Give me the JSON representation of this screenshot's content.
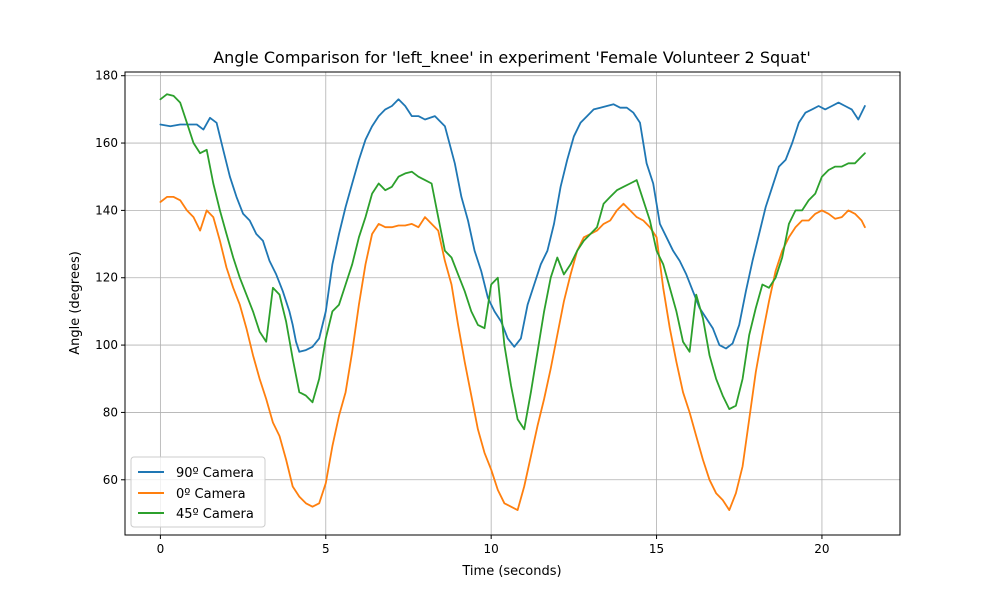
{
  "chart_data": {
    "type": "line",
    "title": "Angle Comparison for 'left_knee' in experiment 'Female Volunteer 2 Squat'",
    "xlabel": "Time (seconds)",
    "ylabel": "Angle (degrees)",
    "xlim": [
      -1.07,
      22.36
    ],
    "ylim": [
      43.6,
      181.1
    ],
    "xticks": [
      0,
      5,
      10,
      15,
      20
    ],
    "yticks": [
      60,
      80,
      100,
      120,
      140,
      160,
      180
    ],
    "grid": true,
    "legend_position": "lower-left",
    "series": [
      {
        "name": "90º Camera",
        "color": "#1f77b4",
        "x": [
          0.0,
          0.3,
          0.6,
          0.9,
          1.1,
          1.3,
          1.5,
          1.7,
          1.9,
          2.1,
          2.3,
          2.5,
          2.7,
          2.9,
          3.1,
          3.3,
          3.5,
          3.7,
          3.9,
          4.0,
          4.1,
          4.2,
          4.4,
          4.6,
          4.8,
          5.0,
          5.2,
          5.4,
          5.6,
          5.8,
          6.0,
          6.2,
          6.4,
          6.6,
          6.8,
          7.0,
          7.2,
          7.4,
          7.6,
          7.8,
          8.0,
          8.3,
          8.6,
          8.9,
          9.1,
          9.3,
          9.5,
          9.7,
          9.9,
          10.1,
          10.3,
          10.5,
          10.7,
          10.9,
          11.1,
          11.3,
          11.5,
          11.7,
          11.9,
          12.1,
          12.3,
          12.5,
          12.7,
          12.9,
          13.1,
          13.3,
          13.5,
          13.7,
          13.9,
          14.1,
          14.3,
          14.5,
          14.7,
          14.9,
          15.1,
          15.3,
          15.5,
          15.7,
          15.9,
          16.1,
          16.3,
          16.5,
          16.7,
          16.9,
          17.1,
          17.3,
          17.5,
          17.7,
          17.9,
          18.1,
          18.3,
          18.5,
          18.7,
          18.9,
          19.1,
          19.3,
          19.5,
          19.7,
          19.9,
          20.1,
          20.3,
          20.5,
          20.7,
          20.9,
          21.1,
          21.3
        ],
        "y": [
          165.5,
          165.0,
          165.5,
          165.5,
          165.5,
          164.0,
          167.5,
          166.0,
          158.0,
          150.0,
          144.0,
          139.0,
          137.0,
          133.0,
          131.0,
          125.0,
          121.0,
          116.0,
          110.0,
          106.0,
          101.0,
          98.0,
          98.5,
          99.5,
          102.0,
          110.0,
          124.0,
          133.0,
          141.0,
          148.0,
          155.0,
          161.0,
          165.0,
          168.0,
          170.0,
          171.0,
          173.0,
          171.0,
          168.0,
          168.0,
          167.0,
          168.0,
          165.0,
          154.0,
          144.0,
          137.0,
          128.0,
          122.0,
          114.0,
          110.0,
          107.0,
          102.0,
          99.5,
          102.0,
          112.0,
          118.0,
          124.0,
          128.0,
          136.0,
          147.0,
          155.0,
          162.0,
          166.0,
          168.0,
          170.0,
          170.5,
          171.0,
          171.5,
          170.5,
          170.5,
          169.0,
          166.0,
          154.0,
          148.0,
          136.0,
          132.0,
          128.0,
          125.0,
          121.0,
          116.0,
          111.0,
          108.0,
          105.0,
          100.0,
          99.0,
          100.5,
          106.0,
          116.0,
          125.0,
          133.0,
          141.0,
          147.0,
          153.0,
          155.0,
          160.0,
          166.0,
          169.0,
          170.0,
          171.0,
          170.0,
          171.0,
          172.0,
          171.0,
          170.0,
          167.0,
          171.0
        ]
      },
      {
        "name": "0º Camera",
        "color": "#ff7f0e",
        "x": [
          0.0,
          0.2,
          0.4,
          0.6,
          0.8,
          1.0,
          1.2,
          1.4,
          1.6,
          1.8,
          2.0,
          2.2,
          2.4,
          2.6,
          2.8,
          3.0,
          3.2,
          3.4,
          3.6,
          3.8,
          4.0,
          4.2,
          4.4,
          4.6,
          4.8,
          5.0,
          5.2,
          5.4,
          5.6,
          5.8,
          6.0,
          6.2,
          6.4,
          6.6,
          6.8,
          7.0,
          7.2,
          7.4,
          7.6,
          7.8,
          8.0,
          8.2,
          8.4,
          8.6,
          8.8,
          9.0,
          9.2,
          9.4,
          9.6,
          9.8,
          10.0,
          10.2,
          10.4,
          10.6,
          10.8,
          11.0,
          11.2,
          11.4,
          11.6,
          11.8,
          12.0,
          12.2,
          12.4,
          12.6,
          12.8,
          13.0,
          13.2,
          13.4,
          13.6,
          13.8,
          14.0,
          14.2,
          14.4,
          14.6,
          14.8,
          15.0,
          15.2,
          15.4,
          15.6,
          15.8,
          16.0,
          16.2,
          16.4,
          16.6,
          16.8,
          17.0,
          17.2,
          17.4,
          17.6,
          17.8,
          18.0,
          18.2,
          18.4,
          18.6,
          18.8,
          19.0,
          19.2,
          19.4,
          19.6,
          19.8,
          20.0,
          20.2,
          20.4,
          20.6,
          20.8,
          21.0,
          21.2,
          21.3
        ],
        "y": [
          142.5,
          144.0,
          144.0,
          143.0,
          140.0,
          138.0,
          134.0,
          140.0,
          138.0,
          131.0,
          123.0,
          117.0,
          112.0,
          105.0,
          97.0,
          90.0,
          84.0,
          77.0,
          73.0,
          66.0,
          58.0,
          55.0,
          53.0,
          52.0,
          53.0,
          59.0,
          70.0,
          79.0,
          86.0,
          98.0,
          112.0,
          124.0,
          133.0,
          136.0,
          135.0,
          135.0,
          135.5,
          135.5,
          136.0,
          135.0,
          138.0,
          136.0,
          134.0,
          125.0,
          118.0,
          106.0,
          95.0,
          85.0,
          75.0,
          68.0,
          63.0,
          57.0,
          53.0,
          52.0,
          51.0,
          58.0,
          67.0,
          76.0,
          84.0,
          93.0,
          103.0,
          113.0,
          121.0,
          128.0,
          132.0,
          133.0,
          134.0,
          136.0,
          137.0,
          140.0,
          142.0,
          140.0,
          138.0,
          137.0,
          135.0,
          132.0,
          117.0,
          105.0,
          95.0,
          86.0,
          80.0,
          73.0,
          66.0,
          60.0,
          56.0,
          54.0,
          51.0,
          56.0,
          64.0,
          78.0,
          92.0,
          103.0,
          113.0,
          122.0,
          128.0,
          132.0,
          135.0,
          137.0,
          137.0,
          139.0,
          140.0,
          139.0,
          137.5,
          138.0,
          140.0,
          139.0,
          137.0,
          135.0
        ]
      },
      {
        "name": "45º Camera",
        "color": "#2ca02c",
        "x": [
          0.0,
          0.2,
          0.4,
          0.6,
          0.8,
          1.0,
          1.2,
          1.4,
          1.6,
          1.8,
          2.0,
          2.2,
          2.4,
          2.6,
          2.8,
          3.0,
          3.2,
          3.4,
          3.6,
          3.8,
          4.0,
          4.2,
          4.4,
          4.6,
          4.8,
          5.0,
          5.2,
          5.4,
          5.6,
          5.8,
          6.0,
          6.2,
          6.4,
          6.6,
          6.8,
          7.0,
          7.2,
          7.4,
          7.6,
          7.8,
          8.0,
          8.2,
          8.4,
          8.6,
          8.8,
          9.0,
          9.2,
          9.4,
          9.6,
          9.8,
          10.0,
          10.2,
          10.4,
          10.6,
          10.8,
          11.0,
          11.2,
          11.4,
          11.6,
          11.8,
          12.0,
          12.2,
          12.4,
          12.6,
          12.8,
          13.0,
          13.2,
          13.4,
          13.6,
          13.8,
          14.0,
          14.2,
          14.4,
          14.6,
          14.8,
          15.0,
          15.2,
          15.4,
          15.6,
          15.8,
          16.0,
          16.2,
          16.4,
          16.6,
          16.8,
          17.0,
          17.2,
          17.4,
          17.6,
          17.8,
          18.0,
          18.2,
          18.4,
          18.6,
          18.8,
          19.0,
          19.2,
          19.4,
          19.6,
          19.8,
          20.0,
          20.2,
          20.4,
          20.6,
          20.8,
          21.0,
          21.2,
          21.3
        ],
        "y": [
          173.0,
          174.5,
          174.0,
          172.0,
          166.0,
          160.0,
          157.0,
          158.0,
          148.0,
          140.0,
          133.0,
          126.0,
          120.0,
          115.0,
          110.0,
          104.0,
          101.0,
          117.0,
          115.0,
          107.0,
          96.0,
          86.0,
          85.0,
          83.0,
          90.0,
          102.0,
          110.0,
          112.0,
          118.0,
          124.0,
          132.0,
          138.0,
          145.0,
          148.0,
          146.0,
          147.0,
          150.0,
          151.0,
          151.5,
          150.0,
          149.0,
          148.0,
          138.0,
          128.0,
          126.0,
          121.0,
          116.0,
          110.0,
          106.0,
          105.0,
          118.0,
          120.0,
          100.0,
          88.0,
          78.0,
          75.0,
          86.0,
          98.0,
          110.0,
          120.0,
          126.0,
          121.0,
          124.0,
          128.0,
          131.0,
          133.0,
          135.0,
          142.0,
          144.0,
          146.0,
          147.0,
          148.0,
          149.0,
          143.0,
          137.0,
          128.0,
          124.0,
          117.0,
          110.0,
          101.0,
          98.0,
          115.0,
          108.0,
          97.0,
          90.0,
          85.0,
          81.0,
          82.0,
          90.0,
          103.0,
          111.0,
          118.0,
          117.0,
          120.0,
          126.0,
          136.0,
          140.0,
          140.0,
          143.0,
          145.0,
          150.0,
          152.0,
          153.0,
          153.0,
          154.0,
          154.0,
          156.0,
          157.0
        ]
      }
    ]
  }
}
